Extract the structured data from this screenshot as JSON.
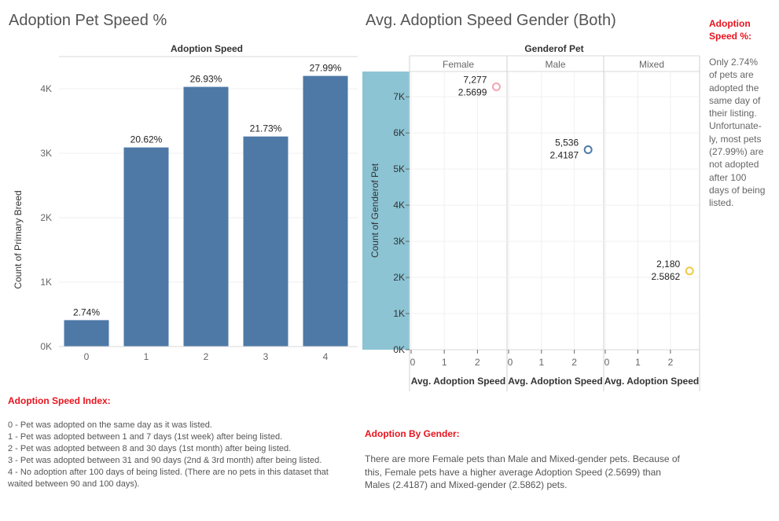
{
  "left_title": "Adoption Pet Speed %",
  "right_title": "Avg. Adoption Speed Gender (Both)",
  "side_note": {
    "heading_line1": "Adoption",
    "heading_line2": "Speed %:",
    "lines": [
      "Only 2.74%",
      "of pets are",
      "adopted the",
      "same day of",
      "their listing.",
      "Unfortunate-",
      "ly, most pets",
      "(27.99%) are",
      "not adopted",
      "after 100",
      "days of being",
      "listed."
    ]
  },
  "index_note": {
    "heading": "Adoption Speed Index:",
    "lines": [
      "0 - Pet was adopted on the same day as it was listed.",
      "1 - Pet was adopted between 1 and 7 days (1st week) after being listed.",
      "2 - Pet was adopted between 8 and 30 days (1st month) after being listed.",
      "3 - Pet was adopted between 31 and 90 days (2nd & 3rd month) after being listed.",
      "4 - No adoption after 100 days of being listed. (There are no pets in this dataset that",
      "waited between 90 and 100 days)."
    ]
  },
  "gender_note": {
    "heading": "Adoption By Gender:",
    "lines": [
      "There are more Female pets than Male and Mixed-gender pets. Because of",
      "this, Female pets have a higher average Adoption Speed (2.5699) than",
      "Males (2.4187) and Mixed-gender (2.5862) pets."
    ]
  },
  "chart_data": [
    {
      "type": "bar",
      "header": "Adoption Speed",
      "ylabel": "Count of Primary Breed",
      "categories": [
        "0",
        "1",
        "2",
        "3",
        "4"
      ],
      "values": [
        410,
        3090,
        4030,
        3260,
        4200
      ],
      "labels": [
        "2.74%",
        "20.62%",
        "26.93%",
        "21.73%",
        "27.99%"
      ],
      "yticks": [
        "0K",
        "1K",
        "2K",
        "3K",
        "4K"
      ],
      "ylim": [
        0,
        4500
      ],
      "color": "#4e79a7",
      "grid": true
    },
    {
      "type": "scatter",
      "header": "Genderof Pet",
      "ylabel": "Count of Genderof Pet",
      "xlabel": "Avg. Adoption Speed",
      "panels": [
        "Female",
        "Male",
        "Mixed"
      ],
      "xticks": [
        "0",
        "1",
        "2"
      ],
      "xlim": [
        0,
        2.75
      ],
      "yticks": [
        "0K",
        "1K",
        "2K",
        "3K",
        "4K",
        "5K",
        "6K",
        "7K"
      ],
      "ylim": [
        0,
        7700
      ],
      "points": [
        {
          "panel": "Female",
          "x": 2.5699,
          "y": 7277,
          "count_label": "7,277",
          "speed_label": "2.5699",
          "color": "#f4a6b5"
        },
        {
          "panel": "Male",
          "x": 2.4187,
          "y": 5536,
          "count_label": "5,536",
          "speed_label": "2.4187",
          "color": "#4e79a7"
        },
        {
          "panel": "Mixed",
          "x": 2.5862,
          "y": 2180,
          "count_label": "2,180",
          "speed_label": "2.5862",
          "color": "#edc948"
        }
      ],
      "axis_band_color": "#8cc4d4",
      "grid": true
    }
  ]
}
